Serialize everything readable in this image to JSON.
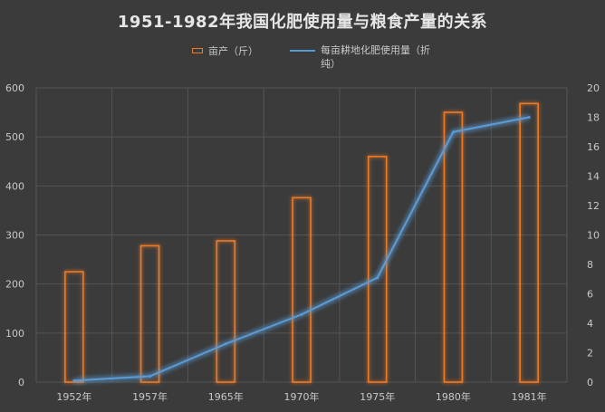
{
  "chart_data": {
    "type": "bar",
    "title": "1951-1982年我国化肥使用量与粮食产量的关系",
    "categories": [
      "1952年",
      "1957年",
      "1965年",
      "1970年",
      "1975年",
      "1980年",
      "1981年"
    ],
    "series": [
      {
        "name": "亩产（斤）",
        "type": "bar",
        "axis": "left",
        "values": [
          225,
          278,
          288,
          376,
          460,
          550,
          568
        ]
      },
      {
        "name": "每亩耕地化肥使用量（折纯）",
        "type": "line",
        "axis": "right",
        "values": [
          0.1,
          0.4,
          2.6,
          4.6,
          7.1,
          17.0,
          18.0
        ]
      }
    ],
    "y_left": {
      "ylim": [
        0,
        600
      ],
      "ticks": [
        0,
        100,
        200,
        300,
        400,
        500,
        600
      ]
    },
    "y_right": {
      "ylim": [
        0,
        20
      ],
      "ticks": [
        0,
        2,
        4,
        6,
        8,
        10,
        12,
        14,
        16,
        18,
        20
      ]
    },
    "grid": true,
    "legend_position": "top-center",
    "colors": {
      "background": "#3b3b3b",
      "bar_outline": "#ee7a28",
      "line": "#5b9bd5",
      "grid": "#555555",
      "text": "#c8c8c8"
    }
  }
}
